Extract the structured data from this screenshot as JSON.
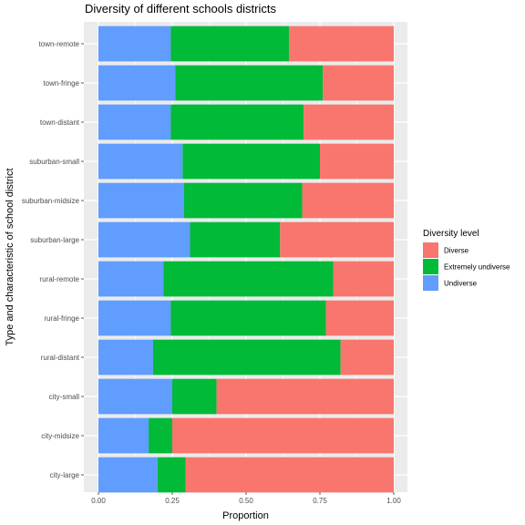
{
  "chart_data": {
    "type": "bar",
    "orientation": "horizontal",
    "stacked": true,
    "title": "Diversity of different schools districts",
    "xlabel": "Proportion",
    "ylabel": "Type and characteristic of school district",
    "xlim": [
      0,
      1
    ],
    "x_ticks": [
      "0.00",
      "0.25",
      "0.50",
      "0.75",
      "1.00"
    ],
    "grid": true,
    "legend": {
      "title": "Diversity level",
      "position": "right",
      "entries": [
        "Diverse",
        "Extremely undiverse",
        "Undiverse"
      ]
    },
    "categories": [
      "town-remote",
      "town-fringe",
      "town-distant",
      "suburban-small",
      "suburban-midsize",
      "suburban-large",
      "rural-remote",
      "rural-fringe",
      "rural-distant",
      "city-small",
      "city-midsize",
      "city-large"
    ],
    "series": [
      {
        "name": "Undiverse",
        "color": "#619CFF",
        "values": [
          0.245,
          0.26,
          0.245,
          0.285,
          0.29,
          0.31,
          0.22,
          0.245,
          0.185,
          0.25,
          0.17,
          0.2
        ]
      },
      {
        "name": "Extremely undiverse",
        "color": "#00BA38",
        "values": [
          0.4,
          0.5,
          0.45,
          0.465,
          0.4,
          0.305,
          0.575,
          0.525,
          0.635,
          0.15,
          0.08,
          0.095
        ]
      },
      {
        "name": "Diverse",
        "color": "#F8766D",
        "values": [
          0.355,
          0.24,
          0.305,
          0.25,
          0.31,
          0.385,
          0.205,
          0.23,
          0.18,
          0.6,
          0.75,
          0.705
        ]
      }
    ]
  }
}
